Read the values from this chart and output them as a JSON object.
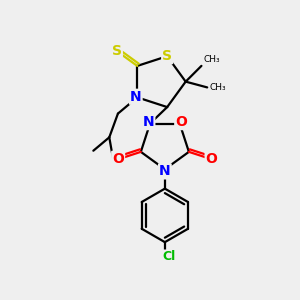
{
  "bg_color": "#efefef",
  "atom_colors": {
    "S": "#cccc00",
    "N": "#0000ff",
    "O": "#ff0000",
    "Cl": "#00bb00",
    "C": "#000000"
  },
  "bond_color": "#000000",
  "line_width": 1.6,
  "fig_width": 3.0,
  "fig_height": 3.0,
  "dpi": 100
}
